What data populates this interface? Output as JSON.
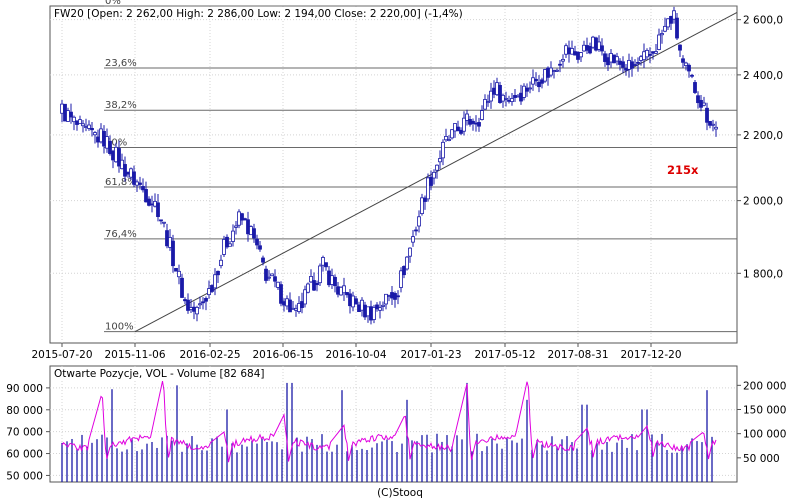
{
  "colors": {
    "candle": "#1a1aa8",
    "oi_line": "#e000e0",
    "volume_bar": "#1a1aa8",
    "label_red": "#dd0000",
    "grid": "#d4d4d4",
    "axis": "#555555"
  },
  "chart_data": [
    {
      "type": "candlestick",
      "title": "FW20 [Open: 2 262,00  High: 2 286,00  Low: 2 194,00  Close: 2 220,00] (-1,4%)",
      "instrument": "FW20",
      "ohlc": {
        "open": "2 262,00",
        "high": "2 286,00",
        "low": "2 194,00",
        "close": "2 220,00",
        "change": "-1,4%"
      },
      "x_tick_labels": [
        "2015-07-20",
        "2015-11-06",
        "2016-02-25",
        "2016-06-15",
        "2016-10-04",
        "2017-01-23",
        "2017-05-12",
        "2017-08-31",
        "2017-12-20"
      ],
      "y_tick_labels": [
        "2 600,0",
        "2 400,0",
        "2 200,0",
        "2 000,0",
        "1 800,0"
      ],
      "y_ticks": [
        2600,
        2400,
        2200,
        2000,
        1800
      ],
      "y_scale": "log",
      "ylim": [
        1627,
        2652
      ],
      "fibonacci_levels": [
        {
          "label": "0%",
          "value": 2652
        },
        {
          "label": "23,6%",
          "value": 2424
        },
        {
          "label": "38,2%",
          "value": 2280
        },
        {
          "label": "50%",
          "value": 2160
        },
        {
          "label": "61,8%",
          "value": 2040
        },
        {
          "label": "76,4%",
          "value": 1892
        },
        {
          "label": "100%",
          "value": 1654
        }
      ],
      "trendline": [
        {
          "date": "2015-11-06",
          "value": 1654
        },
        {
          "date": "2018-03-15",
          "value": 2560
        }
      ],
      "annotation": "215x",
      "series_path": [
        [
          "2015-07-20",
          2280
        ],
        [
          "2015-08-20",
          2210
        ],
        [
          "2015-09-20",
          2190
        ],
        [
          "2015-10-20",
          2100
        ],
        [
          "2015-11-06",
          2060
        ],
        [
          "2015-12-10",
          1980
        ],
        [
          "2016-01-05",
          1820
        ],
        [
          "2016-01-20",
          1720
        ],
        [
          "2016-02-05",
          1700
        ],
        [
          "2016-02-25",
          1760
        ],
        [
          "2016-03-20",
          1880
        ],
        [
          "2016-04-10",
          1950
        ],
        [
          "2016-04-25",
          1920
        ],
        [
          "2016-05-20",
          1800
        ],
        [
          "2016-06-15",
          1740
        ],
        [
          "2016-07-05",
          1690
        ],
        [
          "2016-07-25",
          1760
        ],
        [
          "2016-08-15",
          1820
        ],
        [
          "2016-09-05",
          1760
        ],
        [
          "2016-10-04",
          1720
        ],
        [
          "2016-10-25",
          1700
        ],
        [
          "2016-11-15",
          1730
        ],
        [
          "2016-12-05",
          1760
        ],
        [
          "2016-12-25",
          1880
        ],
        [
          "2017-01-15",
          2030
        ],
        [
          "2017-01-23",
          2070
        ],
        [
          "2017-02-15",
          2180
        ],
        [
          "2017-03-15",
          2240
        ],
        [
          "2017-04-05",
          2260
        ],
        [
          "2017-04-25",
          2360
        ],
        [
          "2017-05-12",
          2320
        ],
        [
          "2017-06-05",
          2340
        ],
        [
          "2017-07-01",
          2390
        ],
        [
          "2017-07-25",
          2420
        ],
        [
          "2017-08-10",
          2490
        ],
        [
          "2017-08-31",
          2470
        ],
        [
          "2017-09-20",
          2510
        ],
        [
          "2017-10-10",
          2480
        ],
        [
          "2017-11-01",
          2440
        ],
        [
          "2017-11-20",
          2420
        ],
        [
          "2017-12-20",
          2470
        ],
        [
          "2018-01-10",
          2560
        ],
        [
          "2018-01-25",
          2620
        ],
        [
          "2018-02-10",
          2430
        ],
        [
          "2018-03-01",
          2360
        ],
        [
          "2018-03-20",
          2270
        ],
        [
          "2018-04-05",
          2220
        ]
      ]
    },
    {
      "type": "bar+line",
      "title": "Otwarte Pozycje, VOL - Volume [82 684]",
      "left_axis_tick_labels": [
        "90 000",
        "80 000",
        "70 000",
        "60 000",
        "50 000"
      ],
      "left_axis_ticks": [
        90000,
        80000,
        70000,
        60000,
        50000
      ],
      "left_ylim": [
        47000,
        100000
      ],
      "right_axis_tick_labels": [
        "200 000",
        "150 000",
        "100 000",
        "50 000"
      ],
      "right_axis_ticks": [
        200000,
        150000,
        100000,
        50000
      ],
      "right_ylim": [
        0,
        240000
      ],
      "volume_baseline": 80000,
      "volume_spikes": [
        [
          "2015-10-05",
          192000
        ],
        [
          "2016-01-05",
          200000
        ],
        [
          "2016-03-25",
          150000
        ],
        [
          "2016-06-25",
          205000
        ],
        [
          "2016-09-15",
          190000
        ],
        [
          "2016-12-15",
          170000
        ],
        [
          "2017-03-15",
          205000
        ],
        [
          "2017-06-15",
          170000
        ],
        [
          "2017-09-10",
          160000
        ],
        [
          "2017-12-10",
          150000
        ],
        [
          "2018-03-20",
          190000
        ]
      ],
      "oi_baseline": 65000,
      "oi_spikes": [
        [
          "2015-09-18",
          88000
        ],
        [
          "2015-12-18",
          95000
        ],
        [
          "2016-03-18",
          70000
        ],
        [
          "2016-06-17",
          78000
        ],
        [
          "2016-09-16",
          73000
        ],
        [
          "2016-12-16",
          78000
        ],
        [
          "2017-03-17",
          92000
        ],
        [
          "2017-06-16",
          95000
        ],
        [
          "2017-09-15",
          72000
        ],
        [
          "2017-12-15",
          73000
        ],
        [
          "2018-03-16",
          70000
        ]
      ]
    }
  ],
  "footer": {
    "credit": "(C)Stooq"
  }
}
